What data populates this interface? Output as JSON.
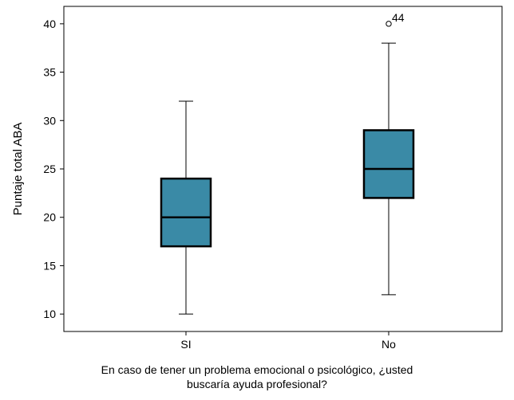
{
  "chart_data": {
    "type": "boxplot",
    "categories": [
      "SI",
      "No"
    ],
    "boxes": [
      {
        "category": "SI",
        "whisker_low": 10,
        "q1": 17,
        "median": 20,
        "q3": 24,
        "whisker_high": 32,
        "outliers": []
      },
      {
        "category": "No",
        "whisker_low": 12,
        "q1": 22,
        "median": 25,
        "q3": 29,
        "whisker_high": 38,
        "outliers": [
          {
            "value": 40,
            "label": "44"
          }
        ]
      }
    ],
    "title": "",
    "ylabel": "Puntaje total ABA",
    "xlabel_lines": [
      "En caso de tener un problema emocional o psicológico, ¿usted",
      "buscaría ayuda profesional?"
    ],
    "ylim": [
      8.2,
      41.8
    ],
    "yticks": [
      10,
      15,
      20,
      25,
      30,
      35,
      40
    ],
    "grid": false,
    "box_color": "#3a8aa6"
  }
}
